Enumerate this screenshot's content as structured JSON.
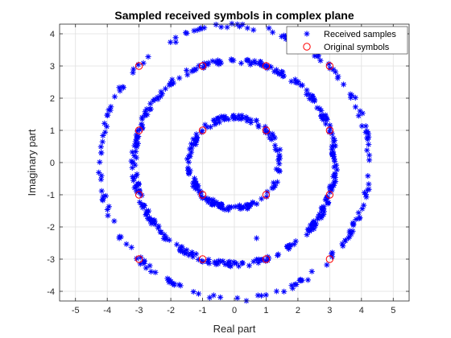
{
  "chart_data": {
    "type": "scatter",
    "title": "Sampled received symbols in complex plane",
    "xlabel": "Real part",
    "ylabel": "Imaginary part",
    "xlim": [
      -5.5,
      5.5
    ],
    "ylim": [
      -4.3,
      4.3
    ],
    "xticks": [
      -5,
      -4,
      -3,
      -2,
      -1,
      0,
      1,
      2,
      3,
      4,
      5
    ],
    "yticks": [
      -4,
      -3,
      -2,
      -1,
      0,
      1,
      2,
      3,
      4
    ],
    "grid": true,
    "legend_position": "top-right",
    "series": [
      {
        "name": "Received samples",
        "marker": "asterisk",
        "color": "#0000ff",
        "rings": [
          {
            "radius": 1.414,
            "count": 160
          },
          {
            "radius": 3.162,
            "count": 320
          },
          {
            "radius": 4.243,
            "count": 180
          }
        ],
        "outliers": [
          [
            0.7,
            -2.35
          ]
        ]
      },
      {
        "name": "Original symbols",
        "marker": "circle",
        "color": "#ff0000",
        "points": [
          [
            -3,
            -3
          ],
          [
            -3,
            -1
          ],
          [
            -3,
            1
          ],
          [
            -3,
            3
          ],
          [
            -1,
            -3
          ],
          [
            -1,
            -1
          ],
          [
            -1,
            1
          ],
          [
            -1,
            3
          ],
          [
            1,
            -3
          ],
          [
            1,
            -1
          ],
          [
            1,
            1
          ],
          [
            1,
            3
          ],
          [
            3,
            -3
          ],
          [
            3,
            -1
          ],
          [
            3,
            1
          ],
          [
            3,
            3
          ]
        ]
      }
    ]
  }
}
